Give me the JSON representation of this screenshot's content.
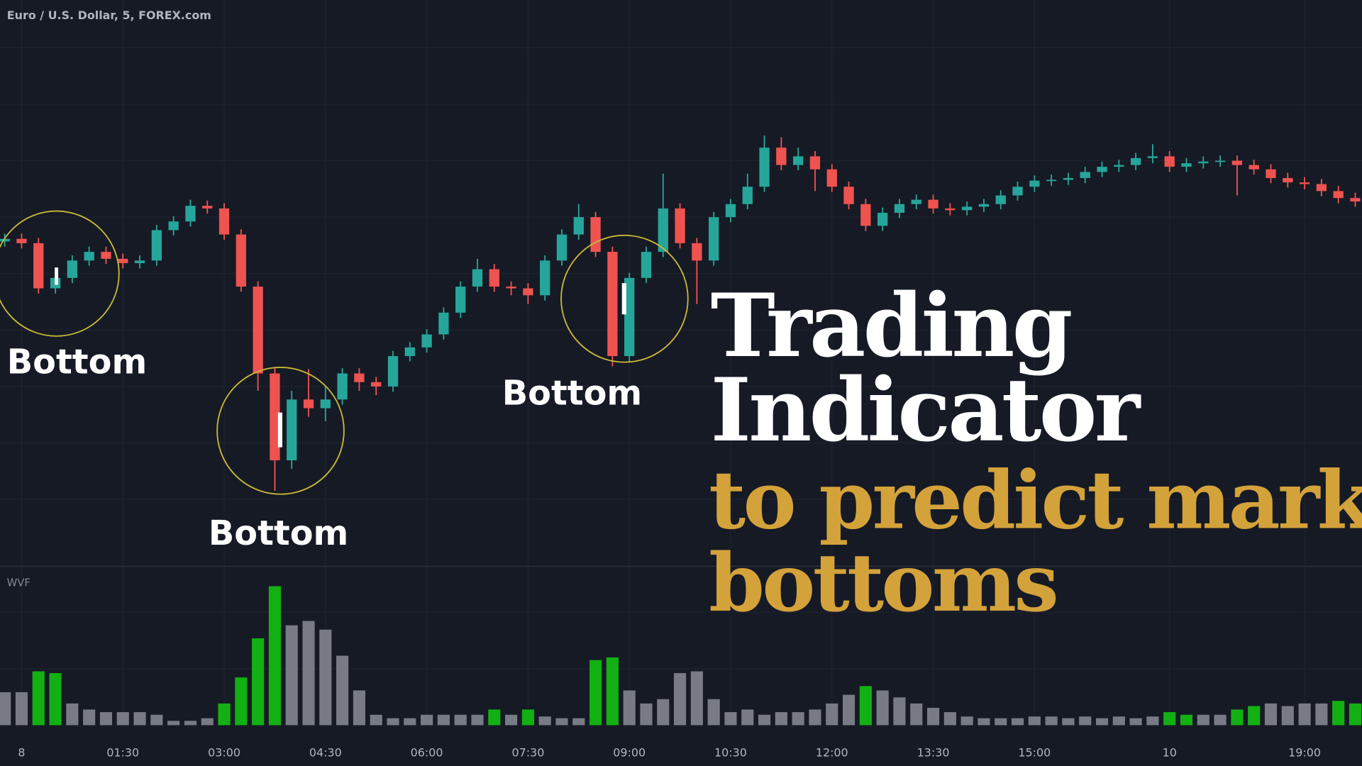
{
  "chart_data": [
    {
      "type": "candlestick",
      "title": "Euro / U.S. Dollar, 5, FOREX.com",
      "up_color": "#26a69a",
      "down_color": "#ef5350",
      "xlim": [
        -0.32,
        19.85
      ],
      "ylim": [
        0,
        650
      ],
      "x": [
        -0.25,
        0,
        0.25,
        0.5,
        0.75,
        1,
        1.25,
        1.5,
        1.75,
        2,
        2.25,
        2.5,
        2.75,
        3,
        3.25,
        3.5,
        3.75,
        4,
        4.25,
        4.5,
        4.75,
        5,
        5.25,
        5.5,
        5.75,
        6,
        6.25,
        6.5,
        6.75,
        7,
        7.25,
        7.5,
        7.75,
        8,
        8.25,
        8.5,
        8.75,
        9,
        9.25,
        9.5,
        9.75,
        10,
        10.25,
        10.5,
        10.75,
        11,
        11.25,
        11.5,
        11.75,
        12,
        12.25,
        12.5,
        12.75,
        13,
        13.25,
        13.5,
        13.75,
        14,
        14.25,
        14.5,
        14.75,
        15,
        15.25,
        15.5,
        15.75,
        16,
        16.25,
        16.5,
        16.75,
        17,
        17.25,
        17.5,
        17.75,
        18,
        18.25,
        18.5,
        18.75,
        19,
        19.25,
        19.5,
        19.75
      ],
      "open": [
        372,
        375,
        370,
        318,
        330,
        350,
        360,
        352,
        347,
        350,
        385,
        395,
        413,
        410,
        380,
        320,
        220,
        120,
        190,
        180,
        190,
        220,
        210,
        205,
        240,
        250,
        265,
        290,
        320,
        340,
        320,
        318,
        310,
        350,
        380,
        400,
        360,
        240,
        330,
        360,
        410,
        370,
        350,
        400,
        415,
        435,
        480,
        460,
        470,
        455,
        435,
        415,
        390,
        405,
        415,
        420,
        410,
        408,
        412,
        415,
        425,
        435,
        442,
        443,
        445,
        452,
        458,
        460,
        468,
        470,
        458,
        462,
        464,
        465,
        460,
        455,
        445,
        440,
        438,
        430,
        422
      ],
      "high": [
        381,
        381,
        376,
        336,
        356,
        366,
        366,
        358,
        356,
        391,
        401,
        420,
        419,
        416,
        386,
        326,
        226,
        200,
        225,
        205,
        226,
        226,
        216,
        246,
        256,
        271,
        296,
        326,
        352,
        346,
        326,
        324,
        356,
        386,
        415,
        406,
        366,
        336,
        366,
        450,
        416,
        376,
        406,
        421,
        450,
        494,
        492,
        480,
        476,
        461,
        441,
        421,
        411,
        421,
        426,
        426,
        416,
        418,
        421,
        431,
        441,
        448,
        449,
        451,
        458,
        464,
        466,
        474,
        484,
        476,
        468,
        470,
        471,
        471,
        466,
        461,
        451,
        446,
        444,
        436,
        428
      ],
      "low": [
        366,
        364,
        312,
        312,
        324,
        344,
        346,
        341,
        341,
        344,
        379,
        389,
        404,
        374,
        314,
        200,
        85,
        110,
        170,
        165,
        184,
        200,
        195,
        199,
        234,
        244,
        259,
        284,
        314,
        314,
        310,
        300,
        304,
        344,
        374,
        354,
        228,
        234,
        324,
        354,
        364,
        300,
        344,
        394,
        409,
        429,
        454,
        454,
        430,
        429,
        409,
        384,
        384,
        399,
        409,
        404,
        402,
        402,
        406,
        409,
        419,
        429,
        436,
        437,
        439,
        446,
        452,
        454,
        462,
        452,
        452,
        456,
        458,
        425,
        449,
        439,
        434,
        432,
        424,
        416,
        412
      ],
      "close": [
        375,
        370,
        318,
        330,
        350,
        360,
        352,
        347,
        350,
        385,
        395,
        413,
        410,
        380,
        320,
        220,
        120,
        190,
        180,
        190,
        220,
        210,
        205,
        240,
        250,
        265,
        290,
        320,
        340,
        320,
        318,
        310,
        350,
        380,
        400,
        360,
        240,
        330,
        360,
        410,
        370,
        350,
        400,
        415,
        435,
        480,
        460,
        470,
        455,
        435,
        415,
        390,
        405,
        415,
        420,
        410,
        408,
        412,
        415,
        425,
        435,
        442,
        443,
        445,
        452,
        458,
        460,
        468,
        470,
        458,
        462,
        464,
        465,
        460,
        455,
        445,
        440,
        438,
        430,
        422,
        418
      ],
      "annotations": [
        "Bottom",
        "Bottom",
        "Bottom"
      ],
      "headline": [
        "Trading",
        "Indicator"
      ],
      "subheadline": [
        "to predict market",
        "bottoms"
      ]
    },
    {
      "type": "bar",
      "title": "WVF",
      "xlim": [
        -0.32,
        19.85
      ],
      "ylim": [
        0,
        170
      ],
      "xticks": [
        {
          "value": 0,
          "label": "8"
        },
        {
          "value": 1.5,
          "label": "01:30"
        },
        {
          "value": 3,
          "label": "03:00"
        },
        {
          "value": 4.5,
          "label": "04:30"
        },
        {
          "value": 6,
          "label": "06:00"
        },
        {
          "value": 7.5,
          "label": "07:30"
        },
        {
          "value": 9,
          "label": "09:00"
        },
        {
          "value": 10.5,
          "label": "10:30"
        },
        {
          "value": 12,
          "label": "12:00"
        },
        {
          "value": 13.5,
          "label": "13:30"
        },
        {
          "value": 15,
          "label": "15:00"
        },
        {
          "value": 17,
          "label": "10"
        },
        {
          "value": 19,
          "label": "19:00"
        }
      ],
      "x": [
        -0.25,
        0,
        0.25,
        0.5,
        0.75,
        1,
        1.25,
        1.5,
        1.75,
        2,
        2.25,
        2.5,
        2.75,
        3,
        3.25,
        3.5,
        3.75,
        4,
        4.25,
        4.5,
        4.75,
        5,
        5.25,
        5.5,
        5.75,
        6,
        6.25,
        6.5,
        6.75,
        7,
        7.25,
        7.5,
        7.75,
        8,
        8.25,
        8.5,
        8.75,
        9,
        9.25,
        9.5,
        9.75,
        10,
        10.25,
        10.5,
        10.75,
        11,
        11.25,
        11.5,
        11.75,
        12,
        12.25,
        12.5,
        12.75,
        13,
        13.25,
        13.5,
        13.75,
        14,
        14.25,
        14.5,
        14.75,
        15,
        15.25,
        15.5,
        15.75,
        16,
        16.25,
        16.5,
        16.75,
        17,
        17.25,
        17.5,
        17.75,
        18,
        18.25,
        18.5,
        18.75,
        19,
        19.25,
        19.5,
        19.75
      ],
      "values": [
        38,
        38,
        62,
        60,
        25,
        18,
        15,
        15,
        15,
        12,
        5,
        5,
        8,
        25,
        55,
        100,
        160,
        115,
        120,
        110,
        80,
        40,
        12,
        8,
        8,
        12,
        12,
        12,
        12,
        18,
        12,
        18,
        10,
        8,
        8,
        75,
        78,
        40,
        25,
        30,
        60,
        62,
        30,
        15,
        18,
        12,
        15,
        15,
        18,
        25,
        35,
        45,
        40,
        32,
        25,
        20,
        15,
        10,
        8,
        8,
        8,
        10,
        10,
        8,
        10,
        8,
        10,
        8,
        10,
        15,
        12,
        12,
        12,
        18,
        22,
        25,
        22,
        25,
        25,
        28,
        25
      ],
      "colors": [
        "#787b86",
        "#787b86",
        "#13b013",
        "#13b013",
        "#787b86",
        "#787b86",
        "#787b86",
        "#787b86",
        "#787b86",
        "#787b86",
        "#787b86",
        "#787b86",
        "#787b86",
        "#13b013",
        "#13b013",
        "#13b013",
        "#13b013",
        "#787b86",
        "#787b86",
        "#787b86",
        "#787b86",
        "#787b86",
        "#787b86",
        "#787b86",
        "#787b86",
        "#787b86",
        "#787b86",
        "#787b86",
        "#787b86",
        "#13b013",
        "#787b86",
        "#13b013",
        "#787b86",
        "#787b86",
        "#787b86",
        "#13b013",
        "#13b013",
        "#787b86",
        "#787b86",
        "#787b86",
        "#787b86",
        "#787b86",
        "#787b86",
        "#787b86",
        "#787b86",
        "#787b86",
        "#787b86",
        "#787b86",
        "#787b86",
        "#787b86",
        "#787b86",
        "#13b013",
        "#787b86",
        "#787b86",
        "#787b86",
        "#787b86",
        "#787b86",
        "#787b86",
        "#787b86",
        "#787b86",
        "#787b86",
        "#787b86",
        "#787b86",
        "#787b86",
        "#787b86",
        "#787b86",
        "#787b86",
        "#787b86",
        "#787b86",
        "#13b013",
        "#13b013",
        "#787b86",
        "#787b86",
        "#13b013",
        "#13b013",
        "#787b86",
        "#787b86",
        "#787b86",
        "#787b86",
        "#13b013",
        "#13b013"
      ]
    }
  ]
}
